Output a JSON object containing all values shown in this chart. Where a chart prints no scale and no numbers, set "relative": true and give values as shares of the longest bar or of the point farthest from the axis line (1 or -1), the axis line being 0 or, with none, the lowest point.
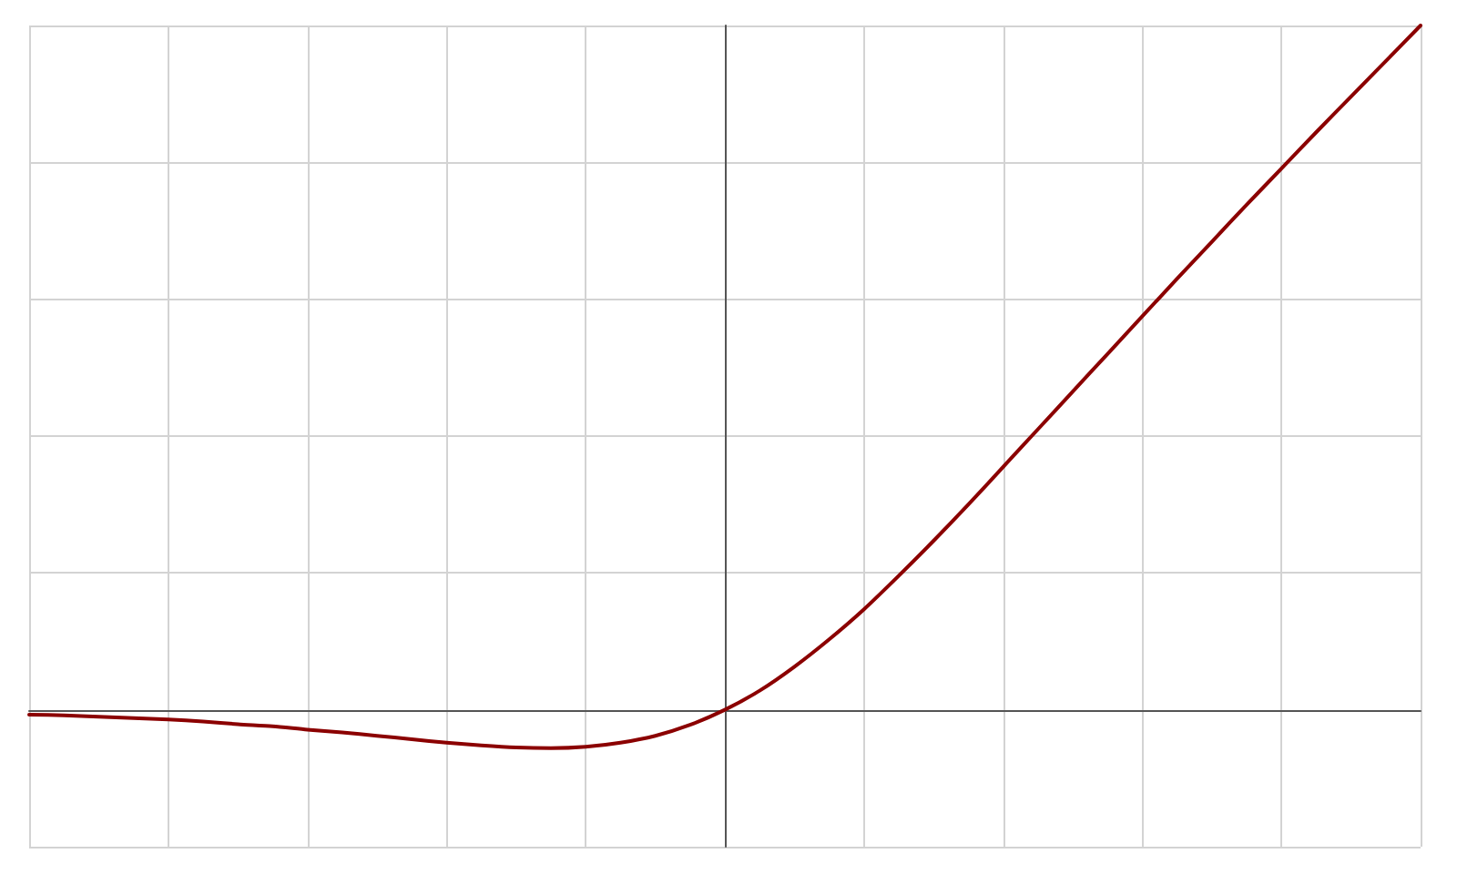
{
  "chart_data": {
    "type": "line",
    "relative": true,
    "categories": [
      null,
      null,
      null,
      null,
      null,
      null,
      null,
      null,
      null,
      null,
      null,
      null,
      null,
      null,
      null,
      null,
      null,
      null,
      null,
      null,
      null,
      null,
      null,
      null,
      null,
      null,
      null,
      null,
      null,
      null,
      null,
      null,
      null,
      null,
      null,
      null,
      null,
      null,
      null,
      null,
      null
    ],
    "series": [
      {
        "color": "#8b0000",
        "values": [
          -0.007,
          -0.008,
          -0.01,
          -0.012,
          -0.014,
          -0.017,
          -0.021,
          -0.024,
          -0.029,
          -0.033,
          -0.038,
          -0.043,
          -0.048,
          -0.052,
          -0.055,
          -0.056,
          -0.054,
          -0.048,
          -0.038,
          -0.022,
          0,
          0.028,
          0.063,
          0.103,
          0.147,
          0.196,
          0.247,
          0.3,
          0.355,
          0.41,
          0.465,
          0.52,
          0.575,
          0.63,
          0.684,
          0.738,
          0.791,
          0.844,
          0.896,
          0.948,
          1
        ]
      }
    ],
    "grid": true,
    "marker": "none",
    "line_style": "solid"
  }
}
